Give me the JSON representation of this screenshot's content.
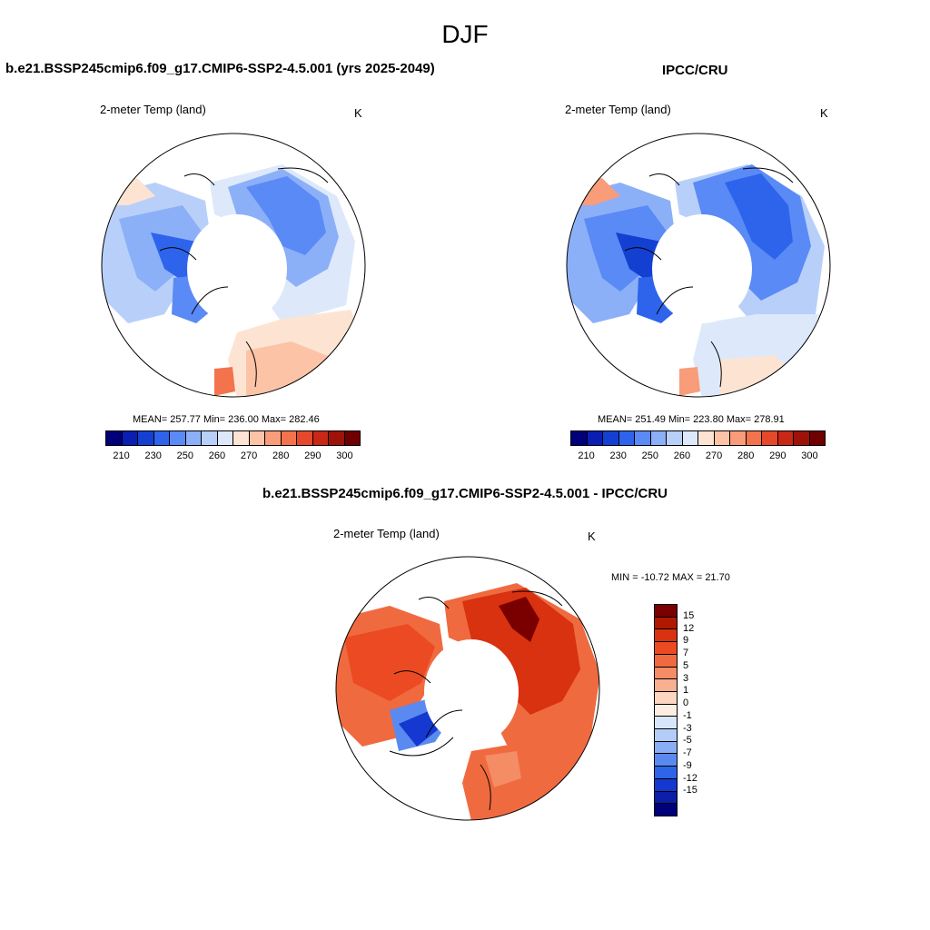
{
  "header": {
    "title": "DJF"
  },
  "panels": {
    "model": {
      "title": "b.e21.BSSP245cmip6.f09_g17.CMIP6-SSP2-4.5.001 (yrs 2025-2049)",
      "subtitle": "2-meter Temp (land)",
      "units": "K",
      "stats": "MEAN= 257.77  Min= 236.00  Max= 282.46",
      "mean": 257.77,
      "min": 236.0,
      "max": 282.46
    },
    "obs": {
      "title": "IPCC/CRU",
      "subtitle": "2-meter Temp (land)",
      "units": "K",
      "stats": "MEAN= 251.49  Min= 223.80  Max= 278.91",
      "mean": 251.49,
      "min": 223.8,
      "max": 278.91
    },
    "diff": {
      "title": "b.e21.BSSP245cmip6.f09_g17.CMIP6-SSP2-4.5.001 - IPCC/CRU",
      "subtitle": "2-meter Temp (land)",
      "units": "K",
      "stats": "MIN = -10.72 MAX =  21.70",
      "min": -10.72,
      "max": 21.7
    }
  },
  "abs_colorbar": {
    "colors": [
      "#00007a",
      "#0a1eb4",
      "#1440d2",
      "#2e64ec",
      "#5a8af5",
      "#8cb0f8",
      "#b8d0f9",
      "#dde9fb",
      "#fde4d2",
      "#fcc3a6",
      "#f99c79",
      "#f3734d",
      "#e5482a",
      "#c82815",
      "#9e120a",
      "#700000"
    ],
    "labels": [
      "210",
      "230",
      "250",
      "260",
      "270",
      "280",
      "290",
      "300"
    ]
  },
  "diff_colorbar": {
    "colors": [
      "#7a0000",
      "#b01800",
      "#d83210",
      "#ec4a22",
      "#f06a40",
      "#f48c66",
      "#f8b090",
      "#fcd6c0",
      "#fdeee2",
      "#d8e6fb",
      "#b4cdf8",
      "#8aaef4",
      "#5a8af0",
      "#2e64e8",
      "#1438d0",
      "#0a1ea8",
      "#000078"
    ],
    "labels": [
      "15",
      "12",
      "9",
      "7",
      "5",
      "3",
      "1",
      "0",
      "-1",
      "-3",
      "-5",
      "-7",
      "-9",
      "-12",
      "-15"
    ]
  }
}
